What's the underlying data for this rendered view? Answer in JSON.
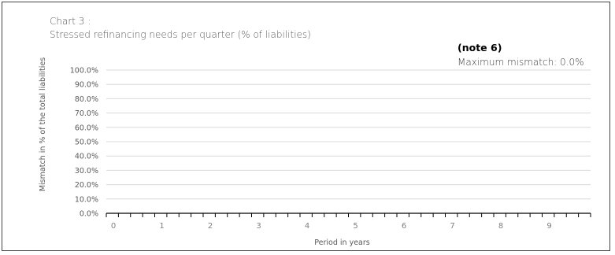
{
  "chart_data": {
    "type": "bar",
    "title": "Chart 3 :",
    "subtitle": "Stressed refinancing needs per quarter  (% of liabilities)",
    "note_title": "(note 6)",
    "note_text": "Maximum mismatch: 0.0%",
    "xlabel": "Period in years",
    "ylabel": "Mismatch in % of the total liabilities",
    "yticks": [
      "0.0%",
      "10.0%",
      "20.0%",
      "30.0%",
      "40.0%",
      "50.0%",
      "60.0%",
      "70.0%",
      "80.0%",
      "90.0%",
      "100.0%"
    ],
    "ylim": [
      0,
      100
    ],
    "xticks": [
      "0",
      "1",
      "2",
      "3",
      "4",
      "5",
      "6",
      "7",
      "8",
      "9"
    ],
    "quarters_per_year": 4,
    "grid": true,
    "series": [
      {
        "values": [
          0,
          0,
          0,
          0,
          0,
          0,
          0,
          0,
          0,
          0,
          0,
          0,
          0,
          0,
          0,
          0,
          0,
          0,
          0,
          0,
          0,
          0,
          0,
          0,
          0,
          0,
          0,
          0,
          0,
          0,
          0,
          0,
          0,
          0,
          0,
          0,
          0,
          0,
          0,
          0
        ]
      }
    ],
    "colors": {
      "grid": "#d9d9d9",
      "axis": "#000000",
      "bar": "#4f81bd"
    }
  }
}
